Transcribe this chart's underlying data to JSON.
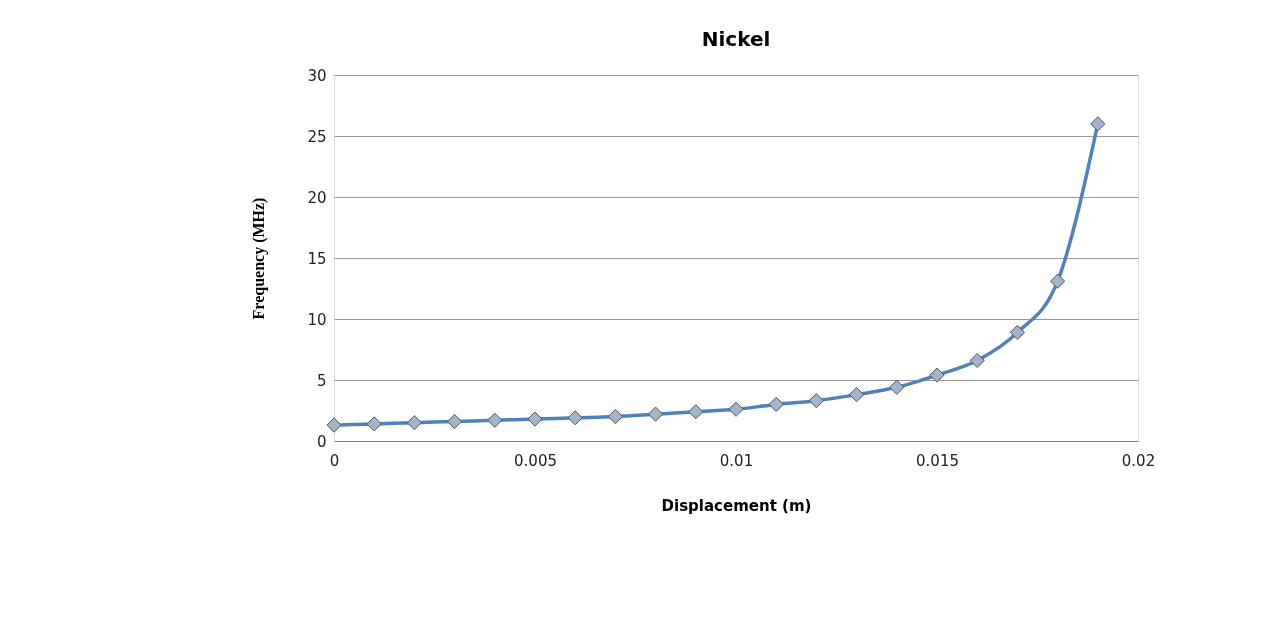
{
  "chart_data": {
    "type": "line",
    "title": "Nickel",
    "xlabel": "Displacement (m)",
    "ylabel": "Frequency (MHz)",
    "x": [
      0,
      0.001,
      0.002,
      0.003,
      0.004,
      0.005,
      0.006,
      0.007,
      0.008,
      0.009,
      0.01,
      0.011,
      0.012,
      0.013,
      0.014,
      0.015,
      0.016,
      0.017,
      0.018,
      0.019
    ],
    "series": [
      {
        "color": "#4f81bd",
        "values": [
          1.3,
          1.4,
          1.5,
          1.6,
          1.7,
          1.8,
          1.9,
          2.0,
          2.2,
          2.4,
          2.6,
          3.0,
          3.3,
          3.8,
          4.4,
          5.4,
          6.6,
          8.9,
          13.1,
          26
        ]
      }
    ],
    "xlim": [
      0,
      0.02
    ],
    "xticks": [
      0,
      0.005,
      0.01,
      0.015,
      0.02
    ],
    "ylim": [
      0,
      30
    ],
    "yticks": [
      0,
      5,
      10,
      15,
      20,
      25,
      30
    ],
    "grid": "y",
    "marker": "diamond",
    "line_style": "solid"
  }
}
